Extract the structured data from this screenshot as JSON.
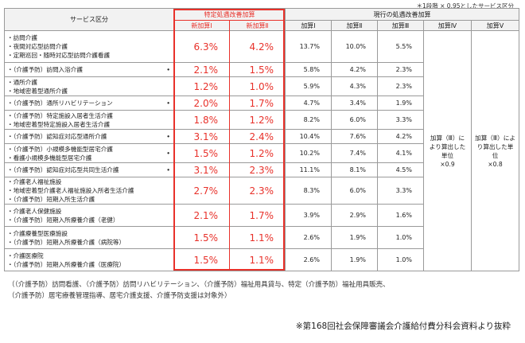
{
  "top_note": "＊1段階 × 0.95としたサービス区分",
  "header": {
    "service_col": "サービス区分",
    "new_group": "特定処遇改善加算",
    "new_cols": [
      "新加算Ⅰ",
      "新加算Ⅱ"
    ],
    "current_group": "現行の処遇改善加算",
    "current_cols": [
      "加算Ⅰ",
      "加算Ⅱ",
      "加算Ⅲ",
      "加算Ⅳ",
      "加算Ⅴ"
    ]
  },
  "rows": [
    {
      "services": [
        "・訪問介護",
        "・夜間対応型訪問介護",
        "・定期巡回・随時対応型訪問介護看護"
      ],
      "dot": false,
      "new1": "6.3%",
      "new2": "4.2%",
      "k1": "13.7%",
      "k2": "10.0%",
      "k3": "5.5%"
    },
    {
      "services": [
        "・（介護予防）訪問入浴介護"
      ],
      "dot": true,
      "new1": "2.1%",
      "new2": "1.5%",
      "k1": "5.8%",
      "k2": "4.2%",
      "k3": "2.3%"
    },
    {
      "services": [
        "・通所介護",
        "・地域密着型通所介護"
      ],
      "dot": false,
      "new1": "1.2%",
      "new2": "1.0%",
      "k1": "5.9%",
      "k2": "4.3%",
      "k3": "2.3%"
    },
    {
      "services": [
        "・（介護予防）通所リハビリテーション"
      ],
      "dot": true,
      "new1": "2.0%",
      "new2": "1.7%",
      "k1": "4.7%",
      "k2": "3.4%",
      "k3": "1.9%"
    },
    {
      "services": [
        "・（介護予防）特定施設入居者生活介護",
        "・地域密着型特定施設入居者生活介護"
      ],
      "dot": false,
      "new1": "1.8%",
      "new2": "1.2%",
      "k1": "8.2%",
      "k2": "6.0%",
      "k3": "3.3%"
    },
    {
      "services": [
        "・（介護予防）認知症対応型通所介護"
      ],
      "dot": true,
      "new1": "3.1%",
      "new2": "2.4%",
      "k1": "10.4%",
      "k2": "7.6%",
      "k3": "4.2%"
    },
    {
      "services": [
        "・（介護予防）小規模多機能型居宅介護",
        "・看護小規模多機能型居宅介護"
      ],
      "dot": true,
      "new1": "1.5%",
      "new2": "1.2%",
      "k1": "10.2%",
      "k2": "7.4%",
      "k3": "4.1%"
    },
    {
      "services": [
        "・（介護予防）認知症対応型共同生活介護"
      ],
      "dot": true,
      "new1": "3.1%",
      "new2": "2.3%",
      "k1": "11.1%",
      "k2": "8.1%",
      "k3": "4.5%"
    },
    {
      "services": [
        "・介護老人福祉施設",
        "・地域密着型介護老人福祉施設入所者生活介護",
        "・（介護予防）短期入所生活介護"
      ],
      "dot": false,
      "new1": "2.7%",
      "new2": "2.3%",
      "k1": "8.3%",
      "k2": "6.0%",
      "k3": "3.3%"
    },
    {
      "services": [
        "・介護老人保健施設",
        "・（介護予防）短期入所療養介護（老健）"
      ],
      "dot": false,
      "new1": "2.1%",
      "new2": "1.7%",
      "k1": "3.9%",
      "k2": "2.9%",
      "k3": "1.6%"
    },
    {
      "services": [
        "・介護療養型医療施設",
        "・（介護予防）短期入所療養介護（病院等）"
      ],
      "dot": false,
      "new1": "1.5%",
      "new2": "1.1%",
      "k1": "2.6%",
      "k2": "1.9%",
      "k3": "1.0%"
    },
    {
      "services": [
        "・介護医療院",
        "・（介護予防）短期入所療養介護（医療院）"
      ],
      "dot": false,
      "new1": "1.5%",
      "new2": "1.1%",
      "k1": "2.6%",
      "k2": "1.9%",
      "k3": "1.0%"
    }
  ],
  "merged_k4": [
    "加算（Ⅲ）に",
    "より算出した",
    "単位",
    "×0.9"
  ],
  "merged_k5": [
    "加算（Ⅲ）によ",
    "り算出した単",
    "位",
    "×0.8"
  ],
  "dot_symbol": "•",
  "footnote_lines": [
    "（（介護予防）訪問看護、（介護予防）訪問リハビリテーション、（介護予防）福祉用具貸与、特定（介護予防）福祉用具販売、",
    "（介護予防）居宅療養管理指導、居宅介護支援、介護予防支援は対象外）"
  ],
  "source_note": "※第168回社会保障審議会介護給付費分科会資料より抜粋"
}
